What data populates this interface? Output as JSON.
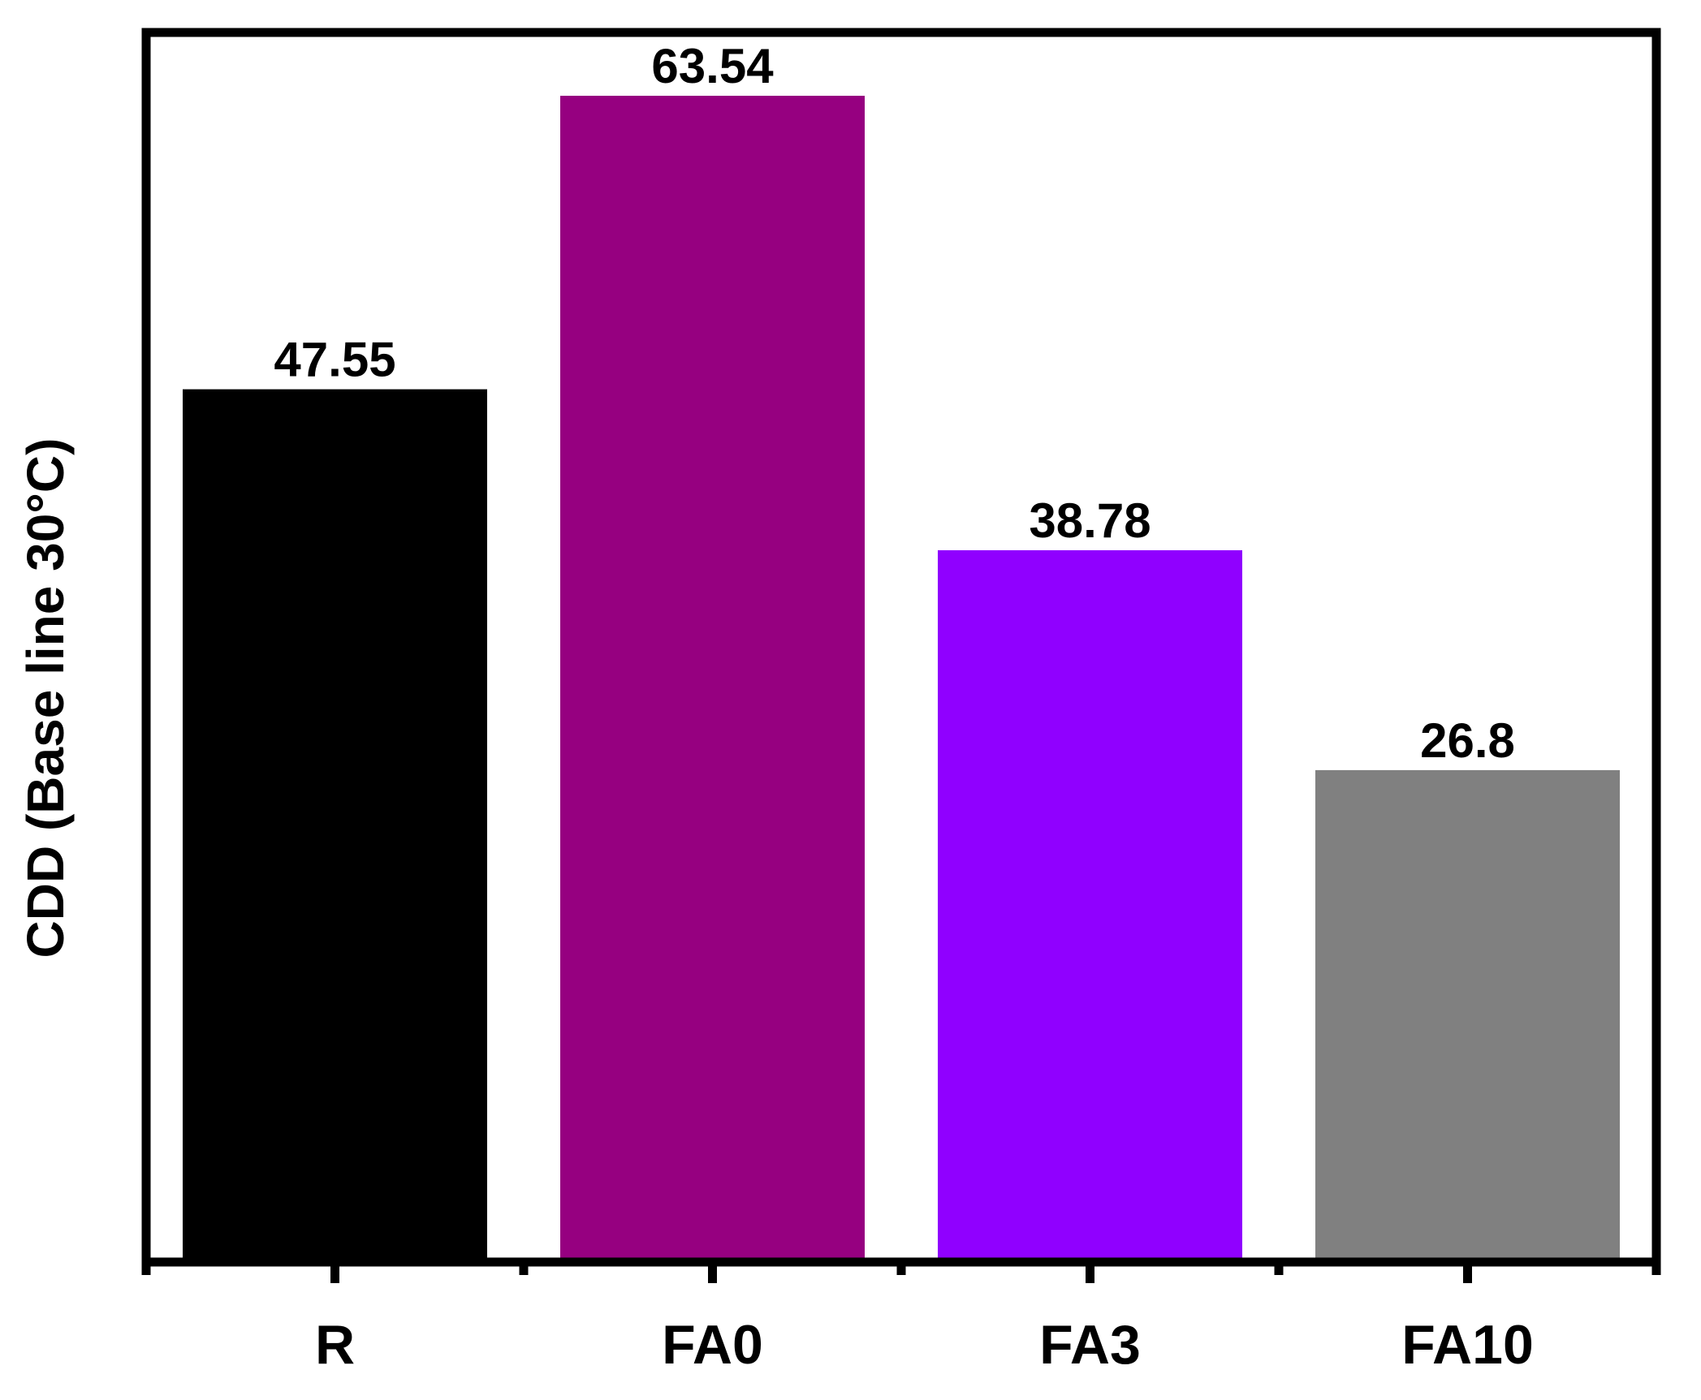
{
  "chart_data": {
    "type": "bar",
    "categories": [
      "R",
      "FA0",
      "FA3",
      "FA10"
    ],
    "values": [
      47.55,
      63.54,
      38.78,
      26.8
    ],
    "data_labels": [
      "47.55",
      "63.54",
      "38.78",
      "26.8"
    ],
    "colors": [
      "#000000",
      "#960080",
      "#9000ff",
      "#808080"
    ],
    "title": "",
    "xlabel": "",
    "ylabel": "CDD (Base line 30°C)",
    "ylim": [
      0,
      63.54
    ],
    "grid": false,
    "legend": "none"
  }
}
